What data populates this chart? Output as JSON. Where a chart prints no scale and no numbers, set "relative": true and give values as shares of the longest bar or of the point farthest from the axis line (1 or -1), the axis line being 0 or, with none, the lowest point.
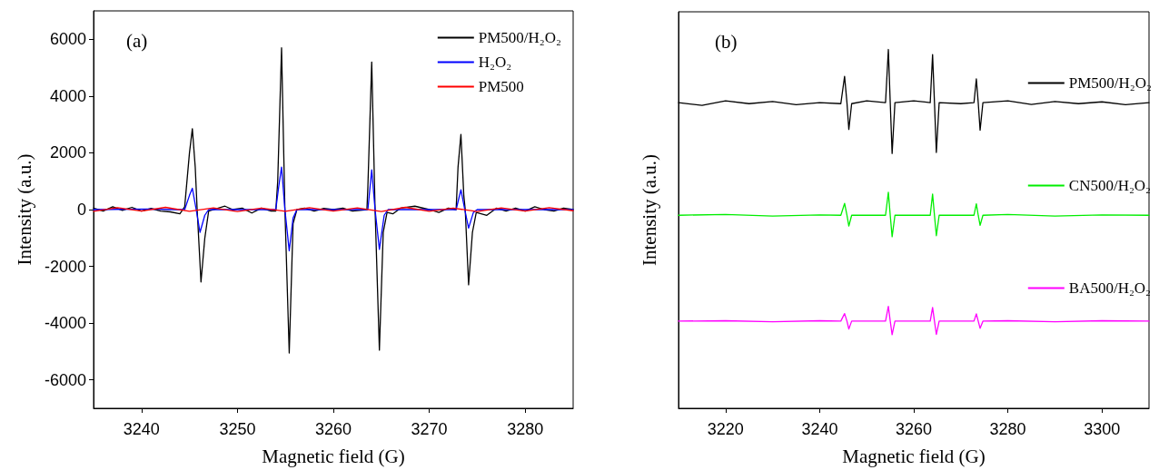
{
  "chart_data": [
    {
      "type": "line",
      "xlabel": "Magnetic field (G)",
      "ylabel": "Intensity (a.u.)",
      "annotations": [
        "(a)"
      ],
      "xlim": [
        3235,
        3285
      ],
      "xticks": [
        3240,
        3250,
        3260,
        3270,
        3280
      ],
      "ylim": [
        -7000,
        7000
      ],
      "yticks": [
        -6000,
        -4000,
        -2000,
        0,
        2000,
        4000,
        6000
      ],
      "grid": false,
      "legend": "top right",
      "marker": "none",
      "line_style": "solid",
      "series": [
        {
          "name": "PM500/H₂O₂",
          "color": "#000000",
          "x": [
            3235,
            3236,
            3237,
            3238,
            3239,
            3240,
            3241,
            3242,
            3243,
            3244,
            3244.5,
            3245,
            3245.3,
            3245.6,
            3245.8,
            3246.2,
            3246.6,
            3247,
            3248,
            3248.7,
            3249.5,
            3250.5,
            3251.5,
            3252.5,
            3253.5,
            3254,
            3254.2,
            3254.6,
            3254.95,
            3255.4,
            3255.8,
            3256.2,
            3257,
            3258,
            3259,
            3260,
            3261,
            3262,
            3263.5,
            3263.6,
            3264,
            3264.35,
            3264.8,
            3265.2,
            3265.6,
            3266.2,
            3267,
            3268.5,
            3270,
            3271,
            3272,
            3272.8,
            3273,
            3273.3,
            3273.6,
            3273.75,
            3274.1,
            3274.5,
            3274.9,
            3276,
            3277,
            3278,
            3279,
            3280,
            3281,
            3282,
            3283,
            3284,
            3285
          ],
          "values": [
            50,
            -50,
            100,
            -30,
            80,
            -50,
            40,
            -50,
            -80,
            -150,
            100,
            2000,
            2850,
            1500,
            0,
            -2550,
            -1000,
            -50,
            50,
            120,
            0,
            50,
            -120,
            50,
            -50,
            -50,
            1000,
            5700,
            0,
            -5050,
            -500,
            0,
            50,
            -50,
            40,
            0,
            50,
            -50,
            0,
            800,
            5200,
            0,
            -4950,
            -800,
            -100,
            -150,
            50,
            120,
            0,
            -100,
            50,
            0,
            1500,
            2650,
            500,
            0,
            -2650,
            -800,
            -100,
            -200,
            50,
            -50,
            50,
            -50,
            100,
            0,
            -50,
            50,
            0
          ]
        },
        {
          "name": "H₂O₂",
          "color": "#0000ff",
          "x": [
            3235,
            3241,
            3243,
            3244.5,
            3245,
            3245.3,
            3245.7,
            3246.1,
            3246.6,
            3247,
            3254,
            3254.3,
            3254.6,
            3254.95,
            3255.4,
            3255.8,
            3256.2,
            3263.6,
            3264,
            3264.35,
            3264.8,
            3265.3,
            3265.7,
            3272.8,
            3273.3,
            3273.7,
            3274.1,
            3274.6,
            3275,
            3285
          ],
          "values": [
            0,
            20,
            0,
            0,
            500,
            750,
            0,
            -800,
            -200,
            0,
            0,
            800,
            1500,
            0,
            -1450,
            -300,
            0,
            0,
            1400,
            0,
            -1400,
            -200,
            0,
            0,
            700,
            0,
            -650,
            -100,
            0,
            0
          ]
        },
        {
          "name": "PM500",
          "color": "#ff0000",
          "x": [
            3235,
            3237.5,
            3240,
            3242.5,
            3245,
            3247.5,
            3250,
            3252.5,
            3255,
            3257.5,
            3260,
            3262.5,
            3265,
            3267.5,
            3270,
            3272.5,
            3275,
            3277.5,
            3280,
            3282.5,
            3285
          ],
          "values": [
            -60,
            70,
            -50,
            80,
            -60,
            60,
            -70,
            50,
            -60,
            70,
            -50,
            60,
            -70,
            80,
            -60,
            50,
            -70,
            60,
            -50,
            70,
            -40
          ]
        }
      ]
    },
    {
      "type": "line",
      "xlabel": "Magnetic field (G)",
      "ylabel": "Intensity (a.u.)",
      "annotations": [
        "(b)"
      ],
      "relative": true,
      "xlim": [
        3210,
        3310
      ],
      "xticks": [
        3220,
        3240,
        3260,
        3280,
        3300
      ],
      "grid": false,
      "legend": "right",
      "marker": "none",
      "line_style": "solid",
      "series": [
        {
          "name": "PM500/H₂O₂",
          "color": "#000000",
          "x": [
            3210,
            3215,
            3220,
            3225,
            3230,
            3235,
            3240,
            3244.5,
            3245.3,
            3245.8,
            3246.2,
            3246.8,
            3250,
            3254,
            3254.6,
            3255,
            3255.4,
            3256,
            3260,
            3263.5,
            3264,
            3264.4,
            3264.8,
            3265.4,
            3270,
            3272.8,
            3273.3,
            3273.7,
            3274.1,
            3274.7,
            3280,
            3285,
            3290,
            3295,
            3300,
            3305,
            3310
          ],
          "values": [
            0.852,
            0.844,
            0.857,
            0.849,
            0.855,
            0.846,
            0.852,
            0.849,
            0.925,
            0.852,
            0.777,
            0.849,
            0.857,
            0.852,
            1.0,
            0.852,
            0.71,
            0.852,
            0.857,
            0.852,
            0.986,
            0.852,
            0.713,
            0.852,
            0.849,
            0.852,
            0.918,
            0.852,
            0.775,
            0.852,
            0.857,
            0.847,
            0.855,
            0.849,
            0.854,
            0.846,
            0.852
          ]
        },
        {
          "name": "CN500/H₂O₂",
          "color": "#00ee00",
          "x": [
            3210,
            3220,
            3230,
            3240,
            3244.5,
            3245.3,
            3245.8,
            3246.2,
            3246.8,
            3254,
            3254.6,
            3255,
            3255.4,
            3256,
            3263.5,
            3264,
            3264.4,
            3264.8,
            3265.4,
            3272.8,
            3273.3,
            3273.7,
            3274.1,
            3274.7,
            3280,
            3290,
            3300,
            3310
          ],
          "values": [
            0.538,
            0.54,
            0.536,
            0.539,
            0.538,
            0.571,
            0.538,
            0.508,
            0.538,
            0.538,
            0.602,
            0.538,
            0.478,
            0.538,
            0.538,
            0.597,
            0.538,
            0.481,
            0.538,
            0.538,
            0.57,
            0.538,
            0.51,
            0.538,
            0.54,
            0.536,
            0.539,
            0.538
          ]
        },
        {
          "name": "BA500/H₂O₂",
          "color": "#ff00ff",
          "x": [
            3210,
            3220,
            3230,
            3240,
            3244.5,
            3245.3,
            3245.8,
            3246.2,
            3246.8,
            3254,
            3254.6,
            3255,
            3255.4,
            3256,
            3263.5,
            3264,
            3264.4,
            3264.8,
            3265.4,
            3272.8,
            3273.3,
            3273.7,
            3274.1,
            3274.7,
            3280,
            3290,
            3300,
            3310
          ],
          "values": [
            0.243,
            0.244,
            0.241,
            0.244,
            0.243,
            0.264,
            0.243,
            0.221,
            0.243,
            0.243,
            0.284,
            0.243,
            0.205,
            0.243,
            0.243,
            0.281,
            0.243,
            0.206,
            0.243,
            0.243,
            0.263,
            0.243,
            0.223,
            0.243,
            0.244,
            0.241,
            0.244,
            0.243
          ]
        }
      ]
    }
  ]
}
